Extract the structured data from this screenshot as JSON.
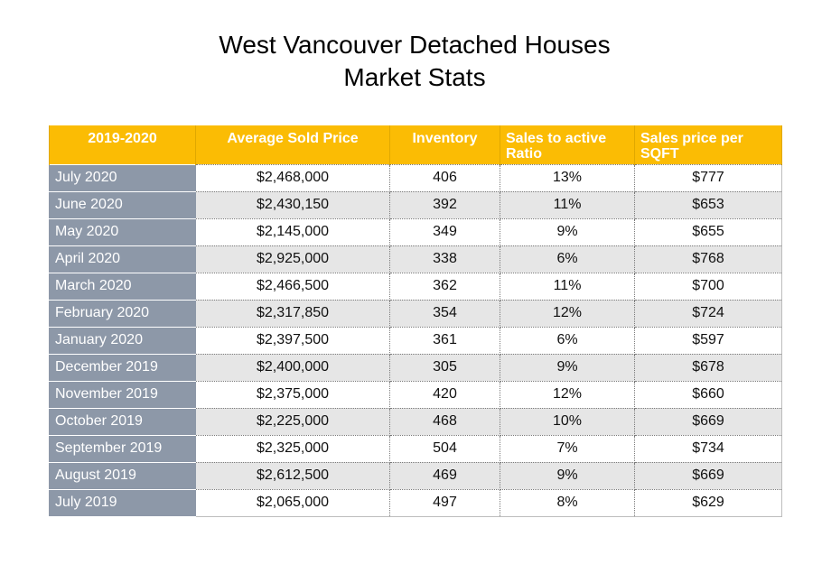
{
  "title": {
    "line1": "West Vancouver Detached Houses",
    "line2": "Market Stats"
  },
  "table": {
    "headers": [
      "2019-2020",
      "Average Sold Price",
      "Inventory",
      "Sales to active Ratio",
      "Sales price per SQFT"
    ],
    "rows": [
      {
        "period": "July 2020",
        "avg_price": "$2,468,000",
        "inventory": "406",
        "ratio": "13%",
        "price_sqft": "$777"
      },
      {
        "period": "June 2020",
        "avg_price": "$2,430,150",
        "inventory": "392",
        "ratio": "11%",
        "price_sqft": "$653"
      },
      {
        "period": "May 2020",
        "avg_price": "$2,145,000",
        "inventory": "349",
        "ratio": "9%",
        "price_sqft": "$655"
      },
      {
        "period": "April 2020",
        "avg_price": "$2,925,000",
        "inventory": "338",
        "ratio": "6%",
        "price_sqft": "$768"
      },
      {
        "period": "March 2020",
        "avg_price": "$2,466,500",
        "inventory": "362",
        "ratio": "11%",
        "price_sqft": "$700"
      },
      {
        "period": "February 2020",
        "avg_price": "$2,317,850",
        "inventory": "354",
        "ratio": "12%",
        "price_sqft": "$724"
      },
      {
        "period": "January 2020",
        "avg_price": "$2,397,500",
        "inventory": "361",
        "ratio": "6%",
        "price_sqft": "$597"
      },
      {
        "period": "December 2019",
        "avg_price": "$2,400,000",
        "inventory": "305",
        "ratio": "9%",
        "price_sqft": "$678"
      },
      {
        "period": "November 2019",
        "avg_price": "$2,375,000",
        "inventory": "420",
        "ratio": "12%",
        "price_sqft": "$660"
      },
      {
        "period": "October 2019",
        "avg_price": "$2,225,000",
        "inventory": "468",
        "ratio": "10%",
        "price_sqft": "$669"
      },
      {
        "period": "September 2019",
        "avg_price": "$2,325,000",
        "inventory": "504",
        "ratio": "7%",
        "price_sqft": "$734"
      },
      {
        "period": "August 2019",
        "avg_price": "$2,612,500",
        "inventory": "469",
        "ratio": "9%",
        "price_sqft": "$669"
      },
      {
        "period": "July 2019",
        "avg_price": "$2,065,000",
        "inventory": "497",
        "ratio": "8%",
        "price_sqft": "$629"
      }
    ]
  },
  "colors": {
    "header_bg": "#fbbc04",
    "month_col_bg": "#8d98a8",
    "alt_row_bg": "#e6e6e6"
  }
}
